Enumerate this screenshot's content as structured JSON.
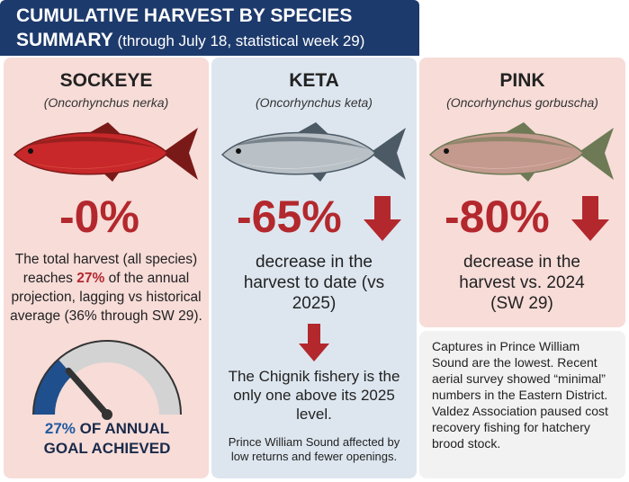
{
  "header": {
    "title": "CUMULATIVE HARVEST BY SPECIES",
    "subtitle_bold": "SUMMARY",
    "subtitle": "(through July 18, statistical week 29)"
  },
  "panels": [
    {
      "name": "SOCKEYE",
      "latin": "(Oncorhynchus nerka)",
      "change": "-0%",
      "body": [
        "The total harvest (all species) reaches ",
        "27%",
        " of the annual projection, lagging vs historical average (36% through SW 29)."
      ],
      "gauge": {
        "value": 27,
        "label": "27%",
        "caption": "OF ANNUAL GOAL ACHIEVED"
      }
    },
    {
      "name": "KETA",
      "latin": "(Oncorhynchus keta)",
      "change": "-65%",
      "body": "decrease in the harvest to date (vs 2025)",
      "highlight": "The Chignik fishery is the only one above its 2025 level.",
      "note": "Prince William Sound affected by low returns and fewer openings."
    },
    {
      "name": "PINK",
      "latin": "(Oncorhynchus gorbuscha)",
      "change": "-80%",
      "body": "decrease in the harvest vs. 2024 (SW 29)",
      "note": "Captures in Prince William Sound are the lowest. Recent aerial survey showed “minimal” numbers in the Eastern District. Valdez Association paused cost recovery fishing for hatchery brood stock."
    }
  ]
}
